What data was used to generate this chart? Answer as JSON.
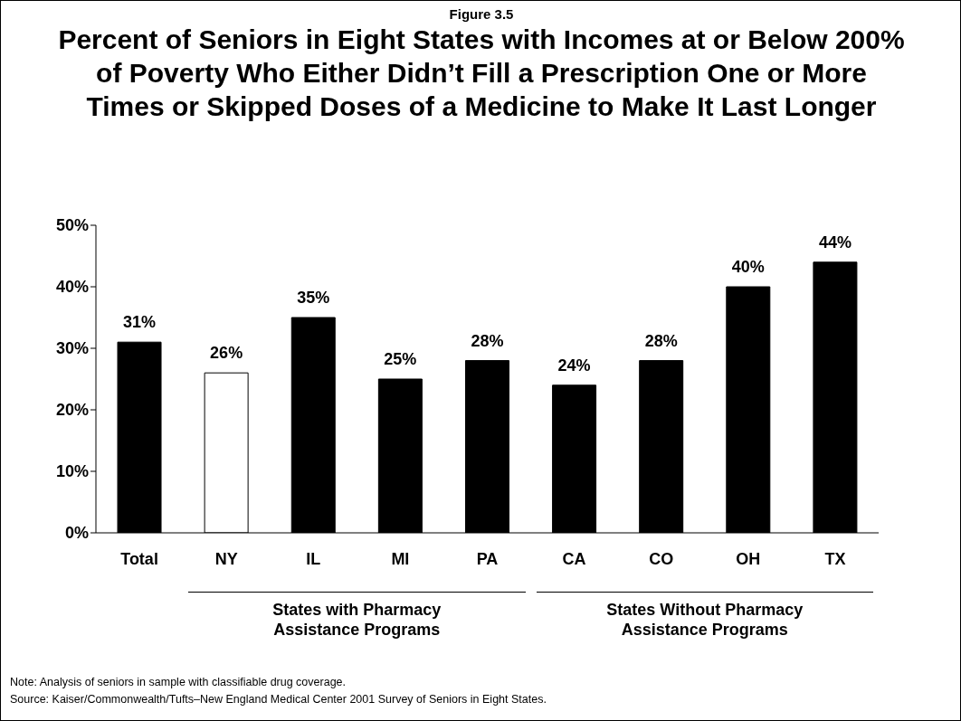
{
  "chart_data": {
    "type": "bar",
    "subtitle": "Figure 3.5",
    "title": "Percent of Seniors in Eight States with Incomes at or Below 200% of Poverty Who Either Didn’t Fill a Prescription One or More Times or Skipped Doses of a Medicine to Make It Last Longer",
    "categories": [
      "Total",
      "NY",
      "IL",
      "MI",
      "PA",
      "CA",
      "CO",
      "OH",
      "TX"
    ],
    "values": [
      31,
      26,
      35,
      25,
      28,
      24,
      28,
      40,
      44
    ],
    "colors": [
      "#000000",
      "#ffffff",
      "#000000",
      "#000000",
      "#000000",
      "#000000",
      "#000000",
      "#000000",
      "#000000"
    ],
    "value_labels": [
      "31%",
      "26%",
      "35%",
      "25%",
      "28%",
      "24%",
      "28%",
      "40%",
      "44%"
    ],
    "ylim": [
      0,
      50
    ],
    "yticks": [
      {
        "value": 0,
        "label": "0%"
      },
      {
        "value": 10,
        "label": "10%"
      },
      {
        "value": 20,
        "label": "20%"
      },
      {
        "value": 30,
        "label": "30%"
      },
      {
        "value": 40,
        "label": "40%"
      },
      {
        "value": 50,
        "label": "50%"
      }
    ],
    "grid": false,
    "legend": false,
    "annotations": [
      "States with Pharmacy Assistance Programs",
      "States Without Pharmacy Assistance Programs",
      "Note: Analysis of seniors in sample with classifiable drug coverage.",
      "Source: Kaiser/Commonwealth/Tufts–New England Medical Center 2001 Survey of Seniors in Eight States."
    ]
  }
}
